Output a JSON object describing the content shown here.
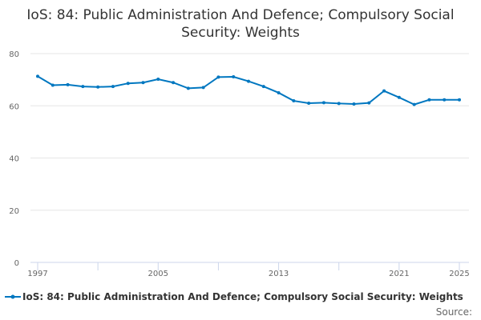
{
  "chart_data": {
    "type": "line",
    "title": "IoS: 84: Public Administration And Defence; Compulsory Social Security: Weights",
    "x": [
      1997,
      1998,
      1999,
      2000,
      2001,
      2002,
      2003,
      2004,
      2005,
      2006,
      2007,
      2008,
      2009,
      2010,
      2011,
      2012,
      2013,
      2014,
      2015,
      2016,
      2017,
      2018,
      2019,
      2020,
      2021,
      2022,
      2023,
      2024,
      2025
    ],
    "series": [
      {
        "name": "IoS: 84: Public Administration And Defence; Compulsory Social Security: Weights",
        "values": [
          71.3,
          67.9,
          68.1,
          67.4,
          67.2,
          67.4,
          68.6,
          68.9,
          70.2,
          68.9,
          66.7,
          67.0,
          71.0,
          71.1,
          69.4,
          67.4,
          65.0,
          61.9,
          61.0,
          61.2,
          60.9,
          60.7,
          61.1,
          65.7,
          63.2,
          60.5,
          62.3,
          62.3,
          62.3
        ],
        "color": "#0077c0"
      }
    ],
    "xticks": [
      "1997",
      "2005",
      "2013",
      "2021",
      "2025"
    ],
    "yticks": [
      "0",
      "20",
      "40",
      "60",
      "80"
    ],
    "ylim": [
      0,
      80
    ],
    "xlim": [
      1997,
      2025
    ],
    "grid": "horizontal",
    "legend": "bottom"
  },
  "source_label": "Source:"
}
